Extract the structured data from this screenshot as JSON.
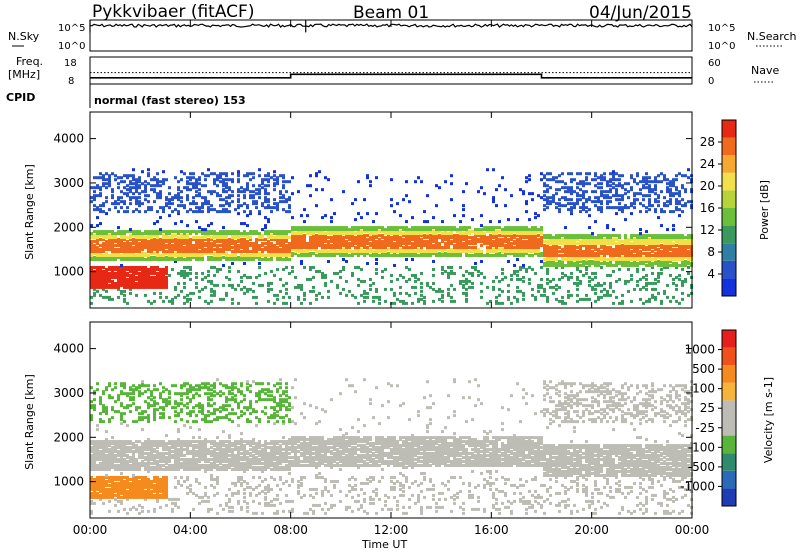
{
  "header": {
    "station": "Pykkvibaer (fitACF)",
    "beam": "Beam 01",
    "date": "04/Jun/2015"
  },
  "chart_data": [
    {
      "type": "line",
      "name": "noise-panel",
      "left_label": "N.Sky",
      "right_label": "N.Search",
      "left_ticks": [
        "10^5",
        "10^0"
      ],
      "right_ticks": [
        "10^5",
        "10^0"
      ],
      "x_range": [
        0,
        24
      ],
      "sky_level": 0.82,
      "spikes_hours": [
        0.0,
        8.6
      ]
    },
    {
      "type": "line",
      "name": "freq-panel",
      "left_label_1": "Freq.",
      "left_label_2": "[MHz]",
      "right_label": "Nave",
      "left_ticks": [
        "18",
        "8"
      ],
      "right_ticks": [
        "60",
        "0"
      ],
      "freq_steps": [
        {
          "from": 0,
          "to": 8,
          "level": 10.3
        },
        {
          "from": 8,
          "to": 18,
          "level": 11.6
        },
        {
          "from": 18,
          "to": 24,
          "level": 10.3
        }
      ],
      "nave_level": 12.2
    },
    {
      "type": "table",
      "name": "cpid",
      "label": "CPID",
      "text": "normal (fast stereo) 153"
    },
    {
      "type": "heatmap",
      "name": "power",
      "ylabel": "Slant Range [km]",
      "y_ticks": [
        1000,
        2000,
        3000,
        4000
      ],
      "y_range": [
        180,
        4600
      ],
      "colorbar_label": "Power [dB]",
      "colorbar_ticks": [
        "28",
        "24",
        "20",
        "16",
        "12",
        "8",
        "4"
      ],
      "colors": [
        "#1432dc",
        "#2a52c8",
        "#2f7fa4",
        "#3a9a5e",
        "#6cbf3a",
        "#b8d23a",
        "#f2e04a",
        "#f6a830",
        "#f06a1e",
        "#e62814"
      ]
    },
    {
      "type": "heatmap",
      "name": "velocity",
      "ylabel": "Slant Range [km]",
      "y_ticks": [
        1000,
        2000,
        3000,
        4000
      ],
      "y_range": [
        180,
        4600
      ],
      "colorbar_label": "Velocity [m s-1]",
      "colorbar_ticks": [
        "1000",
        "500",
        "100",
        "25",
        "-25",
        "-100",
        "-500",
        "-1000"
      ],
      "colors": [
        "#1e3cb4",
        "#2a6ab8",
        "#2f8a6e",
        "#58b43a",
        "#bdbdb5",
        "#bdbdb5",
        "#f6b43c",
        "#f58a1e",
        "#f0501a",
        "#e61e1e"
      ]
    },
    {
      "type": "axis",
      "name": "time-axis",
      "xlabel": "Time UT",
      "x_ticks": [
        "00:00",
        "04:00",
        "08:00",
        "12:00",
        "16:00",
        "20:00",
        "00:00"
      ],
      "x_range": [
        0,
        24
      ]
    }
  ]
}
